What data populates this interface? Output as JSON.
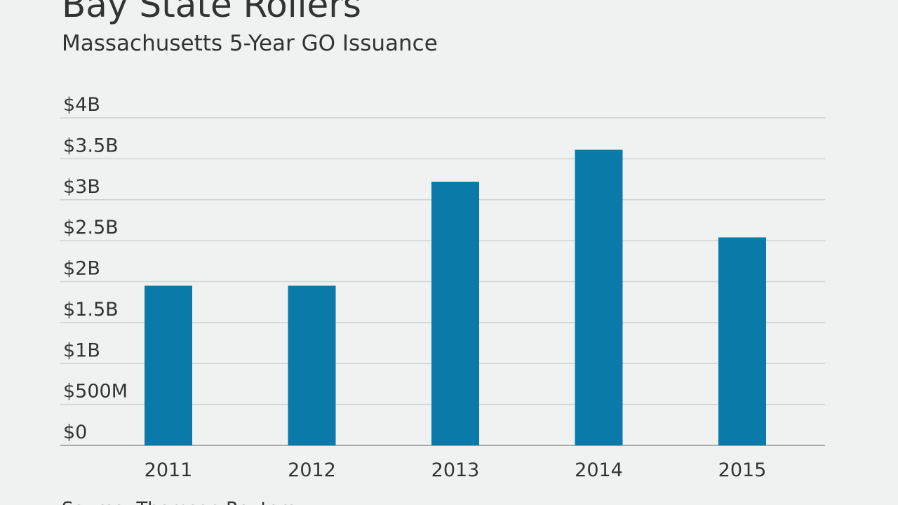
{
  "chart_data": {
    "type": "bar",
    "title": "Bay State Rollers",
    "subtitle": "Massachusetts 5-Year GO Issuance",
    "source": "Source: Thomson Reuters",
    "categories": [
      "2011",
      "2012",
      "2013",
      "2014",
      "2015"
    ],
    "values": [
      1950000000,
      1950000000,
      3220000000,
      3610000000,
      2540000000
    ],
    "color": "#0a7aa8",
    "ylim": [
      0,
      4000000000
    ],
    "yticks": [
      {
        "value": 0,
        "label": "$0"
      },
      {
        "value": 500000000,
        "label": "$500M"
      },
      {
        "value": 1000000000,
        "label": "$1B"
      },
      {
        "value": 1500000000,
        "label": "$1.5B"
      },
      {
        "value": 2000000000,
        "label": "$2B"
      },
      {
        "value": 2500000000,
        "label": "$2.5B"
      },
      {
        "value": 3000000000,
        "label": "$3B"
      },
      {
        "value": 3500000000,
        "label": "$3.5B"
      },
      {
        "value": 4000000000,
        "label": "$4B"
      }
    ],
    "grid": true
  }
}
